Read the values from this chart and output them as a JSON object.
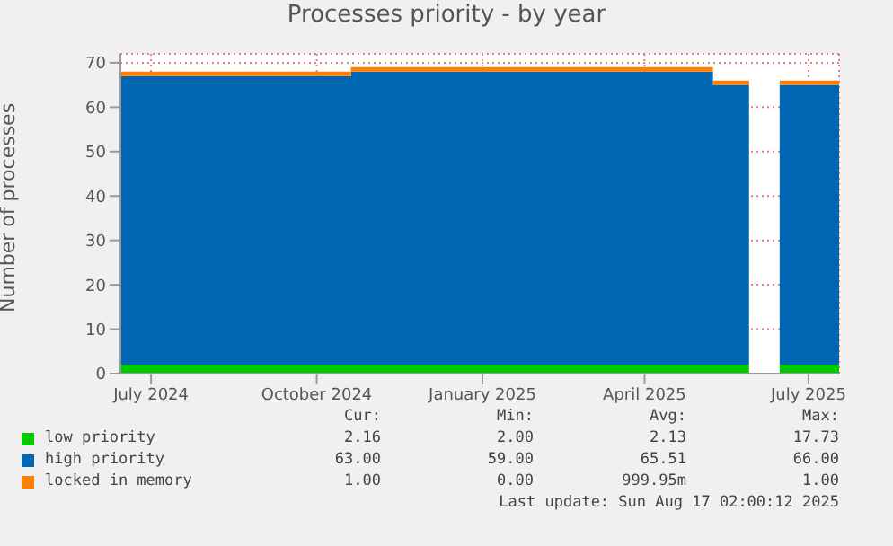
{
  "chart_data": {
    "type": "area",
    "title": "Processes priority - by year",
    "ylabel": "Number of processes",
    "stacked": true,
    "grid": true,
    "legend": "bottom",
    "x": [
      "2024-06-14",
      "2024-10-20",
      "2025-05-09",
      "2025-05-29",
      "2025-05-30",
      "2025-06-15",
      "2025-07-18"
    ],
    "series": [
      {
        "name": "low priority",
        "color": "#00cc00",
        "values": [
          2,
          2,
          2,
          2,
          null,
          2,
          2
        ]
      },
      {
        "name": "high priority",
        "color": "#0066b3",
        "values": [
          65,
          66,
          63,
          63,
          null,
          63,
          63
        ]
      },
      {
        "name": "locked in memory",
        "color": "#ff8000",
        "values": [
          1,
          1,
          1,
          1,
          null,
          1,
          1
        ]
      }
    ],
    "xlim": [
      "2024-06-14",
      "2025-07-18"
    ],
    "xticks": [
      {
        "value": "2024-07-01",
        "label": "July 2024"
      },
      {
        "value": "2024-10-01",
        "label": "October 2024"
      },
      {
        "value": "2025-01-01",
        "label": "January 2025"
      },
      {
        "value": "2025-04-01",
        "label": "April 2025"
      },
      {
        "value": "2025-07-01",
        "label": "July 2025"
      }
    ],
    "ylim": [
      0,
      72
    ],
    "yticks": [
      0,
      10,
      20,
      30,
      40,
      50,
      60,
      70
    ],
    "annotations": [
      "Cur:",
      "Min:",
      "Avg:",
      "Max:",
      "2.16",
      "2.00",
      "2.13",
      "17.73",
      "63.00",
      "59.00",
      "65.51",
      "66.00",
      "1.00",
      "0.00",
      "999.95m",
      "1.00",
      "Last update: Sun Aug 17 02:00:12 2025"
    ]
  }
}
